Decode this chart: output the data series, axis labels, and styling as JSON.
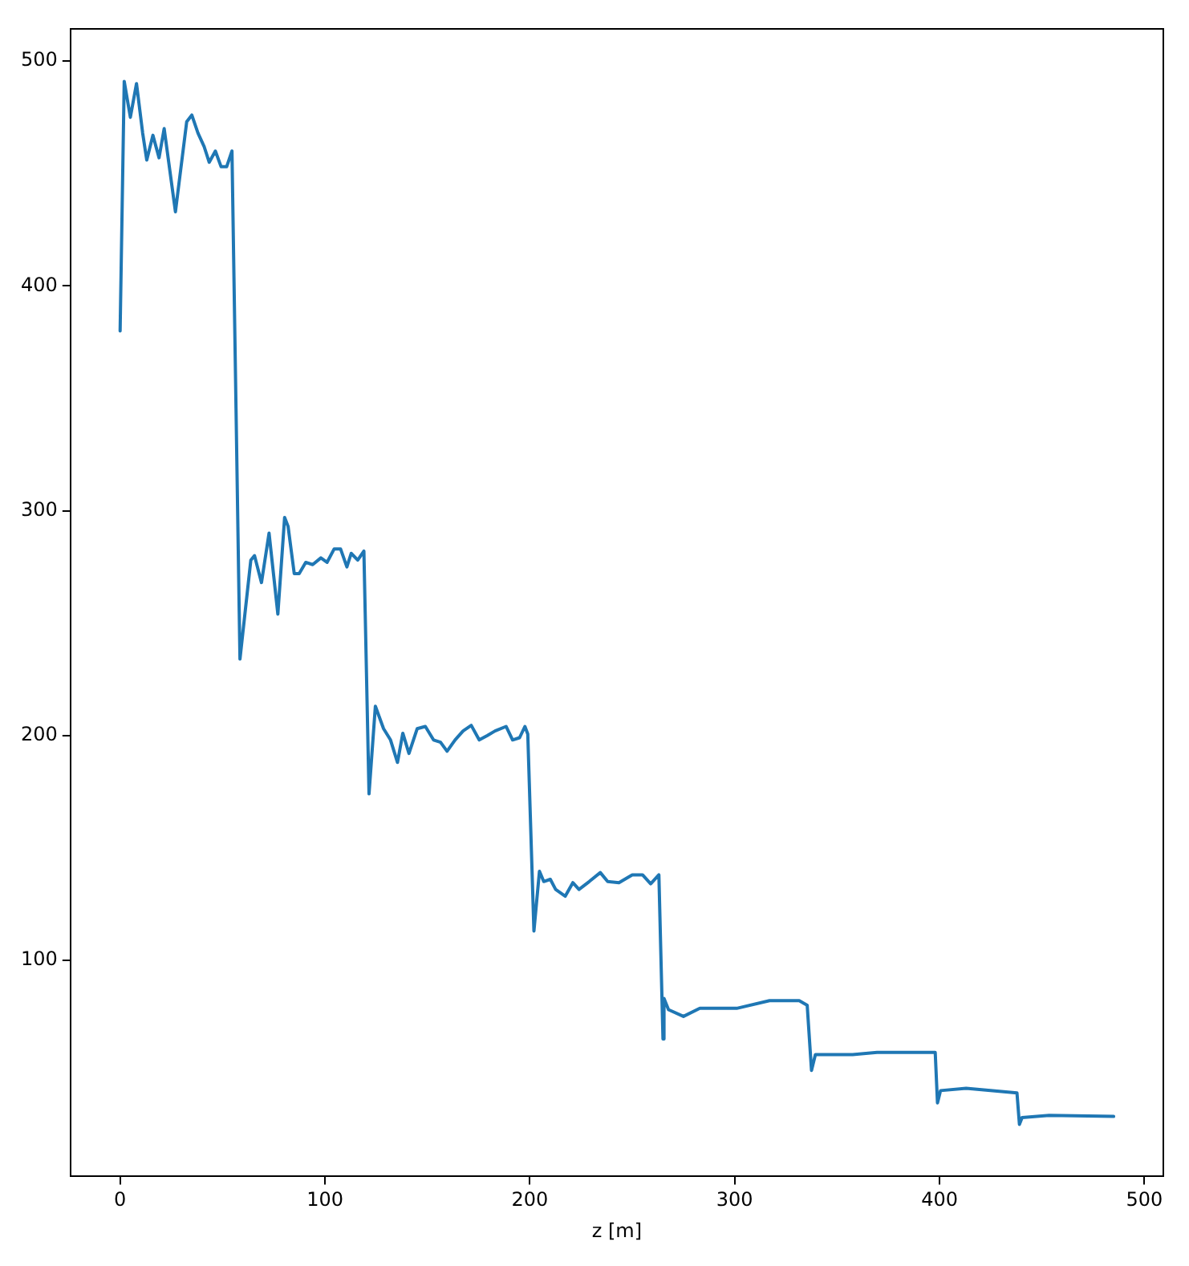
{
  "chart_data": {
    "type": "line",
    "xlabel": "z [m]",
    "xlim": [
      -24.25,
      509.25
    ],
    "ylim": [
      3.8,
      514.2
    ],
    "xticks": [
      0,
      100,
      200,
      300,
      400,
      500
    ],
    "yticks": [
      100,
      200,
      300,
      400,
      500
    ],
    "grid": false,
    "legend": false,
    "marker": "none",
    "line_style": "solid",
    "series": [
      {
        "color": "#1f77b4",
        "x": [
          0,
          2,
          5,
          8,
          11,
          13,
          16,
          19,
          21.5,
          27,
          32.5,
          35,
          38,
          41,
          43.5,
          46.5,
          49.3,
          52,
          54.6,
          58.5,
          63.8,
          65.6,
          69,
          72.7,
          77,
          80.3,
          82,
          85,
          87.4,
          90.6,
          94,
          98,
          101,
          104.5,
          107.6,
          110.7,
          112.8,
          116,
          119,
          121.5,
          124.6,
          128.6,
          132,
          135.4,
          138,
          141,
          145,
          149,
          153,
          156.4,
          159.6,
          163.5,
          167.4,
          171.4,
          175.3,
          179.3,
          183,
          188.4,
          191.6,
          195,
          197.6,
          199,
          202,
          204.7,
          206.8,
          210,
          212.6,
          217.3,
          221,
          224,
          229,
          234.4,
          238,
          243.5,
          250,
          255,
          259,
          263,
          265,
          265.5,
          267.7,
          275,
          283,
          301,
          317,
          331.5,
          335.4,
          337.5,
          339.4,
          357.6,
          369.5,
          397.9,
          399,
          400.5,
          413,
          437.8,
          439,
          440.3,
          453.5,
          485
        ],
        "values": [
          380,
          491,
          475,
          490,
          468,
          456,
          467,
          457,
          470,
          433,
          473,
          476,
          468,
          462,
          455,
          460,
          453,
          453,
          460,
          234,
          278,
          280,
          268,
          290,
          254,
          297,
          293,
          272,
          272,
          277,
          276,
          279,
          277,
          283,
          283,
          275,
          281,
          278,
          282,
          174,
          213,
          203,
          198,
          188,
          201,
          192,
          203,
          204,
          198,
          197,
          193,
          198,
          202,
          204.5,
          198,
          200,
          202,
          204,
          198,
          199,
          204,
          200.6,
          113,
          139.6,
          135,
          136,
          131.5,
          128.5,
          134.5,
          131.5,
          135,
          139,
          135,
          134.5,
          138,
          138,
          134,
          138,
          65,
          83,
          78,
          75,
          78.6,
          78.6,
          82,
          82,
          80,
          51,
          58,
          58,
          59,
          59,
          36.5,
          42,
          43,
          41,
          27,
          30,
          31,
          30.5
        ]
      }
    ]
  }
}
